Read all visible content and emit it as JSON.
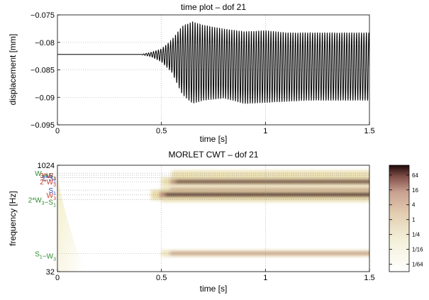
{
  "chart_data": [
    {
      "type": "line",
      "title": "time plot – dof 21",
      "xlabel": "time [s]",
      "ylabel": "displacement [mm]",
      "xlim": [
        0,
        1.5
      ],
      "ylim": [
        -0.095,
        -0.075
      ],
      "xticks": [
        0,
        0.5,
        1,
        1.5
      ],
      "xtick_labels": [
        "0",
        "0.5",
        "1",
        "1.5"
      ],
      "yticks": [
        -0.095,
        -0.09,
        -0.085,
        -0.08,
        -0.075
      ],
      "ytick_labels": [
        "−0.095",
        "−0.09",
        "−0.085",
        "−0.08",
        "−0.075"
      ],
      "grid": true,
      "series": [
        {
          "color": "#000000",
          "baseline": -0.0822,
          "envelope": [
            {
              "t": 0.0,
              "upper": -0.0822,
              "lower": -0.0822
            },
            {
              "t": 0.4,
              "upper": -0.0822,
              "lower": -0.0822
            },
            {
              "t": 0.45,
              "upper": -0.0818,
              "lower": -0.0826
            },
            {
              "t": 0.5,
              "upper": -0.0812,
              "lower": -0.0835
            },
            {
              "t": 0.55,
              "upper": -0.0795,
              "lower": -0.0855
            },
            {
              "t": 0.6,
              "upper": -0.077,
              "lower": -0.0895
            },
            {
              "t": 0.65,
              "upper": -0.0762,
              "lower": -0.0912
            },
            {
              "t": 0.7,
              "upper": -0.0768,
              "lower": -0.0906
            },
            {
              "t": 0.8,
              "upper": -0.0775,
              "lower": -0.0902
            },
            {
              "t": 0.9,
              "upper": -0.078,
              "lower": -0.0912
            },
            {
              "t": 1.0,
              "upper": -0.0778,
              "lower": -0.091
            },
            {
              "t": 1.1,
              "upper": -0.0782,
              "lower": -0.0908
            },
            {
              "t": 1.2,
              "upper": -0.0782,
              "lower": -0.0906
            },
            {
              "t": 1.3,
              "upper": -0.0782,
              "lower": -0.0906
            },
            {
              "t": 1.4,
              "upper": -0.0782,
              "lower": -0.0906
            },
            {
              "t": 1.5,
              "upper": -0.0782,
              "lower": -0.0906
            }
          ]
        }
      ]
    },
    {
      "type": "heatmap",
      "title": "MORLET CWT – dof 21",
      "xlabel": "time [s]",
      "ylabel": "frequency [Hz]",
      "xlim": [
        0,
        1.5
      ],
      "ylim": [
        32,
        1024
      ],
      "yscale": "log",
      "xticks": [
        0,
        0.5,
        1,
        1.5
      ],
      "xtick_labels": [
        "0",
        "0.5",
        "1",
        "1.5"
      ],
      "yticks": [
        32,
        1024
      ],
      "ytick_labels": [
        "32",
        "1024"
      ],
      "colormap": "pink (reversed)",
      "colorbar": {
        "ticks": [
          64,
          16,
          4,
          1,
          0.25,
          0.0625,
          0.015625
        ],
        "tick_labels": [
          "64",
          "16",
          "4",
          "1",
          "1/4",
          "1/16",
          "1/64"
        ],
        "range": [
          0.0078125,
          160
        ],
        "scale": "log"
      },
      "bands": [
        {
          "freq": 790,
          "label": "W₃+S₁",
          "color": "#2e8b2e",
          "t_start": 0.55,
          "t_end": 1.5,
          "strength": 0.3
        },
        {
          "freq": 740,
          "label": "3*W₃",
          "color": "#c23a2a",
          "t_start": 0.55,
          "t_end": 1.5,
          "strength": 0.15
        },
        {
          "freq": 680,
          "label": "2*S₁",
          "color": "#2a44c2",
          "t_start": 0.55,
          "t_end": 1.5,
          "strength": 0.2
        },
        {
          "freq": 600,
          "label": "2*W₃",
          "color": "#c23a2a",
          "t_start": 0.5,
          "t_end": 1.5,
          "strength": 0.75
        },
        {
          "freq": 455,
          "label": "S₁",
          "color": "#2a44c2",
          "t_start": 0.5,
          "t_end": 1.5,
          "strength": 0.55
        },
        {
          "freq": 390,
          "label": "W₃",
          "color": "#c23a2a",
          "t_start": 0.45,
          "t_end": 1.5,
          "strength": 1.0
        },
        {
          "freq": 335,
          "label": "2*W₃−S₁",
          "color": "#2e8b2e",
          "t_start": 0.5,
          "t_end": 1.5,
          "strength": 0.2
        },
        {
          "freq": 58,
          "label": "S₁−W₃",
          "color": "#2e8b2e",
          "t_start": 0.5,
          "t_end": 1.5,
          "strength": 0.4
        }
      ]
    }
  ]
}
